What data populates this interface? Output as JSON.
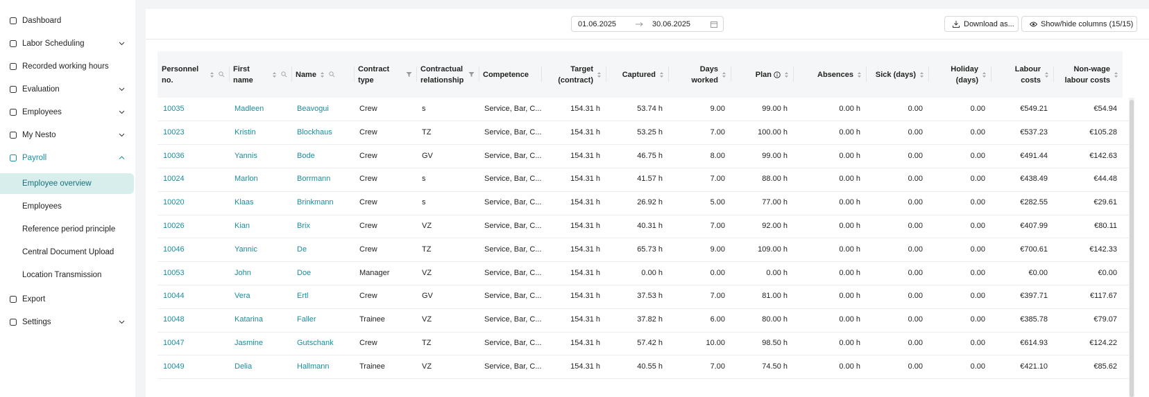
{
  "nav": {
    "items": [
      "Dashboard",
      "Labor Scheduling",
      "Recorded working hours",
      "Evaluation",
      "Employees",
      "My Nesto",
      "Payroll"
    ],
    "payroll_sub": [
      "Employee overview",
      "Employees",
      "Reference period principle",
      "Central Document Upload",
      "Location Transmission"
    ],
    "bottom": [
      "Export",
      "Settings"
    ]
  },
  "toolbar": {
    "date_from": "01.06.2025",
    "date_to": "30.06.2025",
    "download": "Download as...",
    "columns": "Show/hide columns (15/15)"
  },
  "table": {
    "headers": [
      [
        "Personnel no."
      ],
      [
        "First name"
      ],
      [
        "Name"
      ],
      [
        "Contract",
        "type"
      ],
      [
        "Contractual",
        "relationship"
      ],
      [
        "Competence"
      ],
      [
        "Target",
        "(contract)"
      ],
      [
        "Captured"
      ],
      [
        "Days worked"
      ],
      [
        "Plan"
      ],
      [
        "Absences"
      ],
      [
        "Sick (days)"
      ],
      [
        "Holiday",
        "(days)"
      ],
      [
        "Labour costs"
      ],
      [
        "Non-wage",
        "labour costs"
      ]
    ],
    "rows": [
      [
        "10035",
        "Madleen",
        "Beavogui",
        "Crew",
        "s",
        "Service, Bar, C...",
        "154.31 h",
        "53.74 h",
        "9.00",
        "99.00 h",
        "0.00 h",
        "0.00",
        "0.00",
        "€549.21",
        "€54.94"
      ],
      [
        "10023",
        "Kristin",
        "Blockhaus",
        "Crew",
        "TZ",
        "Service, Bar, C...",
        "154.31 h",
        "53.25 h",
        "7.00",
        "100.00 h",
        "0.00 h",
        "0.00",
        "0.00",
        "€537.23",
        "€105.28"
      ],
      [
        "10036",
        "Yannis",
        "Bode",
        "Crew",
        "GV",
        "Service, Bar, C...",
        "154.31 h",
        "46.75 h",
        "8.00",
        "99.00 h",
        "0.00 h",
        "0.00",
        "0.00",
        "€491.44",
        "€142.63"
      ],
      [
        "10024",
        "Marlon",
        "Borrmann",
        "Crew",
        "s",
        "Service, Bar, C...",
        "154.31 h",
        "41.57 h",
        "7.00",
        "88.00 h",
        "0.00 h",
        "0.00",
        "0.00",
        "€438.49",
        "€44.48"
      ],
      [
        "10020",
        "Klaas",
        "Brinkmann",
        "Crew",
        "s",
        "Service, Bar, C...",
        "154.31 h",
        "26.92 h",
        "5.00",
        "77.00 h",
        "0.00 h",
        "0.00",
        "0.00",
        "€282.55",
        "€29.61"
      ],
      [
        "10026",
        "Kian",
        "Brix",
        "Crew",
        "VZ",
        "Service, Bar, C...",
        "154.31 h",
        "40.31 h",
        "7.00",
        "92.00 h",
        "0.00 h",
        "0.00",
        "0.00",
        "€407.99",
        "€80.11"
      ],
      [
        "10046",
        "Yannic",
        "De",
        "Crew",
        "TZ",
        "Service, Bar, C...",
        "154.31 h",
        "65.73 h",
        "9.00",
        "109.00 h",
        "0.00 h",
        "0.00",
        "0.00",
        "€700.61",
        "€142.33"
      ],
      [
        "10053",
        "John",
        "Doe",
        "Manager",
        "VZ",
        "Service, Bar, C...",
        "154.31 h",
        "0.00 h",
        "0.00",
        "0.00 h",
        "0.00 h",
        "0.00",
        "0.00",
        "€0.00",
        "€0.00"
      ],
      [
        "10044",
        "Vera",
        "Ertl",
        "Crew",
        "GV",
        "Service, Bar, C...",
        "154.31 h",
        "37.53 h",
        "7.00",
        "81.00 h",
        "0.00 h",
        "0.00",
        "0.00",
        "€397.71",
        "€117.67"
      ],
      [
        "10048",
        "Katarina",
        "Faller",
        "Trainee",
        "VZ",
        "Service, Bar, C...",
        "154.31 h",
        "37.82 h",
        "6.00",
        "80.00 h",
        "0.00 h",
        "0.00",
        "0.00",
        "€385.78",
        "€79.07"
      ],
      [
        "10047",
        "Jasmine",
        "Gutschank",
        "Crew",
        "TZ",
        "Service, Bar, C...",
        "154.31 h",
        "57.42 h",
        "10.00",
        "98.50 h",
        "0.00 h",
        "0.00",
        "0.00",
        "€614.93",
        "€124.22"
      ],
      [
        "10049",
        "Delia",
        "Hallmann",
        "Trainee",
        "VZ",
        "Service, Bar, C...",
        "154.31 h",
        "40.55 h",
        "7.00",
        "74.50 h",
        "0.00 h",
        "0.00",
        "0.00",
        "€421.10",
        "€85.62"
      ]
    ]
  }
}
